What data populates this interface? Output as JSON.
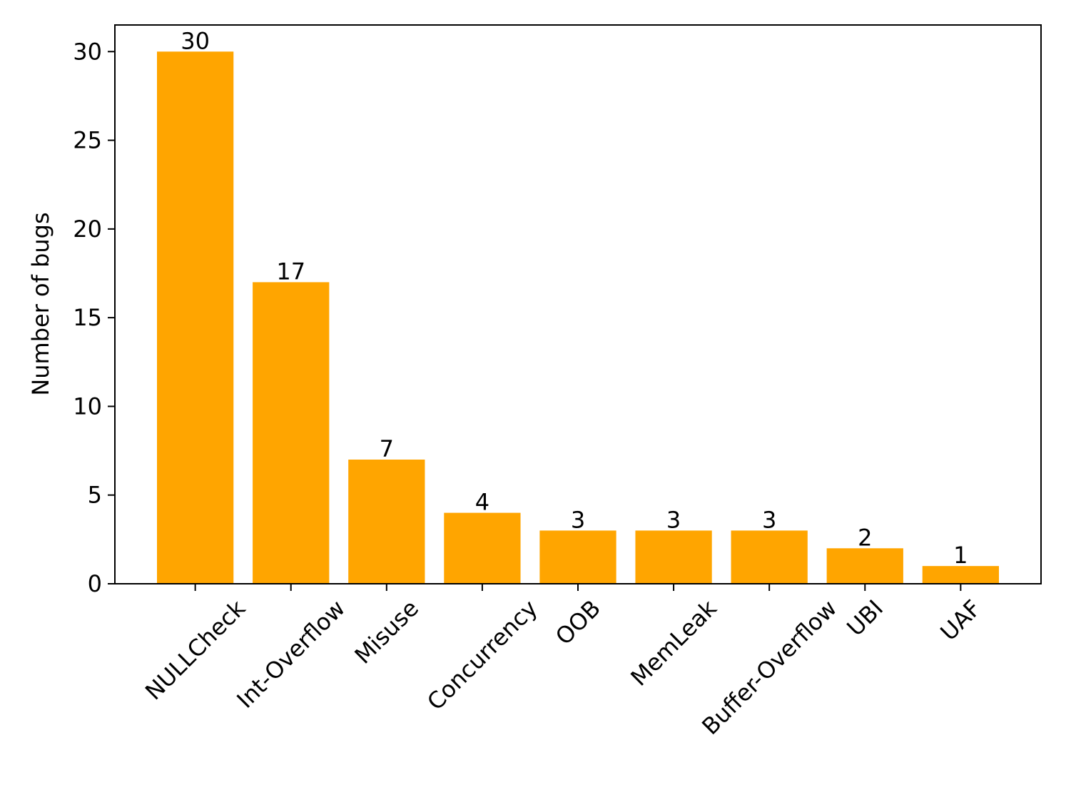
{
  "chart_data": {
    "type": "bar",
    "y_label": "Number of bugs",
    "categories": [
      "NULLCheck",
      "Int-Overflow",
      "Misuse",
      "Concurrency",
      "OOB",
      "MemLeak",
      "Buffer-Overflow",
      "UBI",
      "UAF"
    ],
    "values": [
      30,
      17,
      7,
      4,
      3,
      3,
      3,
      2,
      1
    ],
    "color": "#ffa500",
    "ylim": [
      0,
      31.5
    ],
    "yticks": [
      0,
      5,
      10,
      15,
      20,
      25,
      30
    ],
    "grid": false,
    "value_labels_shown": true
  }
}
